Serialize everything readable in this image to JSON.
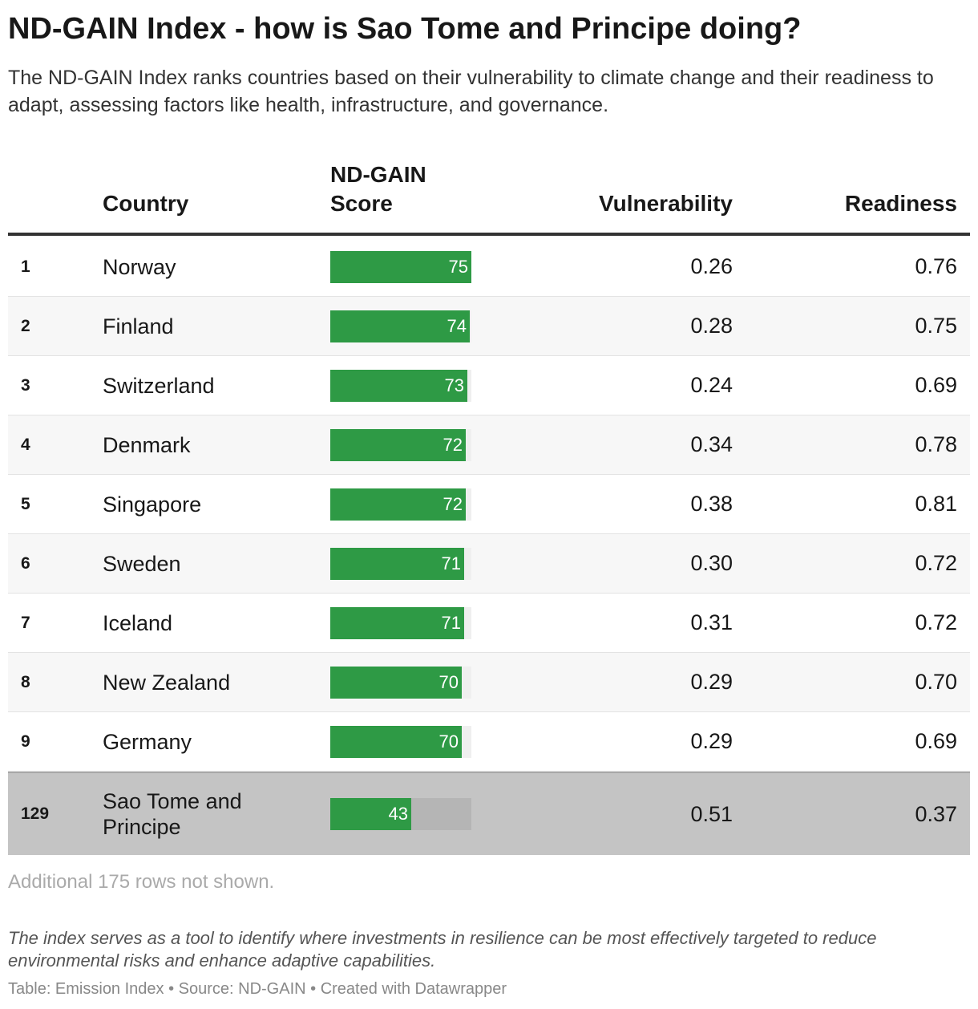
{
  "title": "ND-GAIN Index - how is Sao Tome and Principe doing?",
  "subtitle": "The ND-GAIN Index ranks countries based on their vulnerability to climate change and their readiness to adapt, assessing factors like health, infrastructure, and governance.",
  "columns": {
    "country": "Country",
    "score_line1": "ND-GAIN",
    "score_line2": "Score",
    "vulnerability": "Vulnerability",
    "readiness": "Readiness"
  },
  "colors": {
    "bar": "#2e9a45",
    "highlight_row": "#c4c4c4"
  },
  "chart_data": {
    "type": "table",
    "bar_column_max": 75,
    "rows": [
      {
        "rank": "1",
        "country": "Norway",
        "score": 75,
        "vulnerability": "0.26",
        "readiness": "0.76"
      },
      {
        "rank": "2",
        "country": "Finland",
        "score": 74,
        "vulnerability": "0.28",
        "readiness": "0.75"
      },
      {
        "rank": "3",
        "country": "Switzerland",
        "score": 73,
        "vulnerability": "0.24",
        "readiness": "0.69"
      },
      {
        "rank": "4",
        "country": "Denmark",
        "score": 72,
        "vulnerability": "0.34",
        "readiness": "0.78"
      },
      {
        "rank": "5",
        "country": "Singapore",
        "score": 72,
        "vulnerability": "0.38",
        "readiness": "0.81"
      },
      {
        "rank": "6",
        "country": "Sweden",
        "score": 71,
        "vulnerability": "0.30",
        "readiness": "0.72"
      },
      {
        "rank": "7",
        "country": "Iceland",
        "score": 71,
        "vulnerability": "0.31",
        "readiness": "0.72"
      },
      {
        "rank": "8",
        "country": "New Zealand",
        "score": 70,
        "vulnerability": "0.29",
        "readiness": "0.70"
      },
      {
        "rank": "9",
        "country": "Germany",
        "score": 70,
        "vulnerability": "0.29",
        "readiness": "0.69"
      },
      {
        "rank": "129",
        "country": "Sao Tome and Principe",
        "score": 43,
        "vulnerability": "0.51",
        "readiness": "0.37",
        "highlight": true
      }
    ]
  },
  "notes": {
    "rows_hidden": "Additional 175 rows not shown.",
    "description": "The index serves as a tool to identify where investments in resilience can be most effectively targeted to reduce environmental risks and enhance adaptive capabilities.",
    "footer": "Table: Emission Index • Source: ND-GAIN • Created with Datawrapper"
  }
}
